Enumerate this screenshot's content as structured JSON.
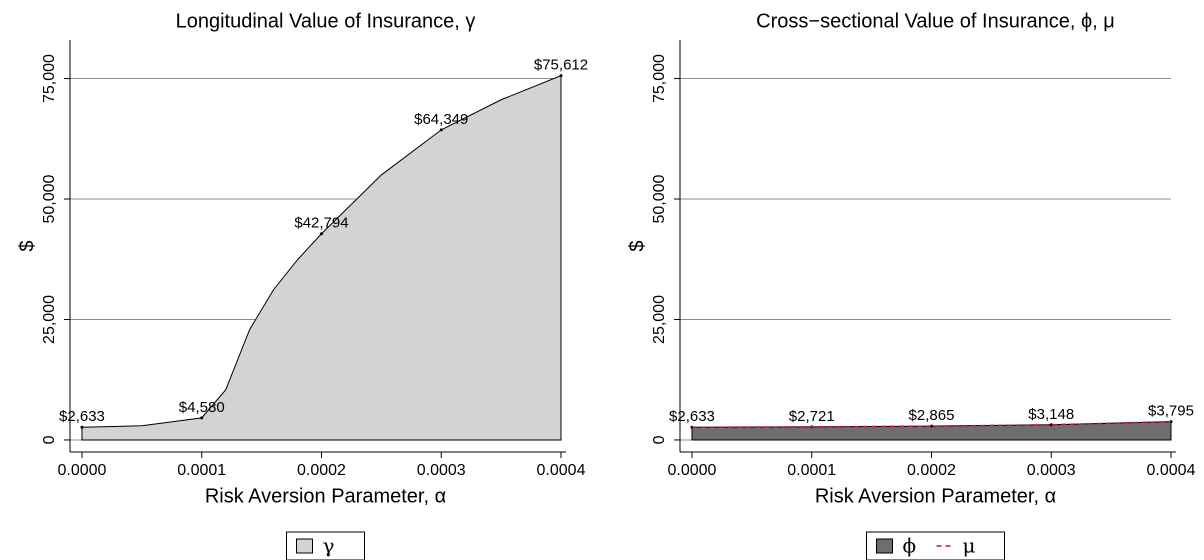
{
  "chart_data": [
    {
      "type": "area",
      "title": "Longitudinal Value of Insurance, γ",
      "xlabel": "Risk Aversion Parameter, α",
      "ylabel": "$",
      "x": [
        0,
        5e-05,
        0.0001,
        0.00012,
        0.00014,
        0.00016,
        0.00018,
        0.0002,
        0.00025,
        0.0003,
        0.00035,
        0.0004
      ],
      "series": [
        {
          "name": "γ",
          "type": "area",
          "color": "#d3d3d3",
          "values": [
            2633,
            2950,
            4580,
            10400,
            22900,
            31200,
            37400,
            42794,
            55000,
            64349,
            70600,
            75612
          ],
          "value_labels": [
            "$2,633",
            null,
            "$4,580",
            null,
            null,
            null,
            null,
            "$42,794",
            null,
            "$64,349",
            null,
            "$75,612"
          ]
        }
      ],
      "xlim": [
        -1e-05,
        0.0004
      ],
      "ylim": [
        -2500,
        83000
      ],
      "xticks": [
        {
          "value": 0,
          "label": "0.0000"
        },
        {
          "value": 0.0001,
          "label": "0.0001"
        },
        {
          "value": 0.0002,
          "label": "0.0002"
        },
        {
          "value": 0.0003,
          "label": "0.0003"
        },
        {
          "value": 0.0004,
          "label": "0.0004"
        }
      ],
      "yticks": [
        0,
        {
          "value": 25000,
          "label": "25,000"
        },
        {
          "value": 50000,
          "label": "50,000"
        },
        {
          "value": 75000,
          "label": "75,000"
        }
      ],
      "grid": true,
      "legend": "bottom"
    },
    {
      "type": "area",
      "title": "Cross−sectional Value of Insurance, ϕ, μ",
      "xlabel": "Risk Aversion Parameter, α",
      "ylabel": "$",
      "x": [
        0,
        0.0001,
        0.0002,
        0.0003,
        0.0004
      ],
      "series": [
        {
          "name": "ϕ",
          "type": "area",
          "color": "#6e6e6e",
          "values": [
            2633,
            2721,
            2865,
            3148,
            3795
          ],
          "value_labels": [
            "$2,633",
            "$2,721",
            "$2,865",
            "$3,148",
            "$3,795"
          ]
        },
        {
          "name": "μ",
          "type": "line",
          "style": "dashed",
          "color": "#c0143c",
          "values": [
            2633,
            2721,
            2865,
            3148,
            3795
          ]
        }
      ],
      "xlim": [
        -1e-05,
        0.0004
      ],
      "ylim": [
        -2500,
        83000
      ],
      "xticks": [
        {
          "value": 0,
          "label": "0.0000"
        },
        {
          "value": 0.0001,
          "label": "0.0001"
        },
        {
          "value": 0.0002,
          "label": "0.0002"
        },
        {
          "value": 0.0003,
          "label": "0.0003"
        },
        {
          "value": 0.0004,
          "label": "0.0004"
        }
      ],
      "yticks": [
        0,
        {
          "value": 25000,
          "label": "25,000"
        },
        {
          "value": 50000,
          "label": "50,000"
        },
        {
          "value": 75000,
          "label": "75,000"
        }
      ],
      "grid": true,
      "legend": "bottom"
    }
  ]
}
